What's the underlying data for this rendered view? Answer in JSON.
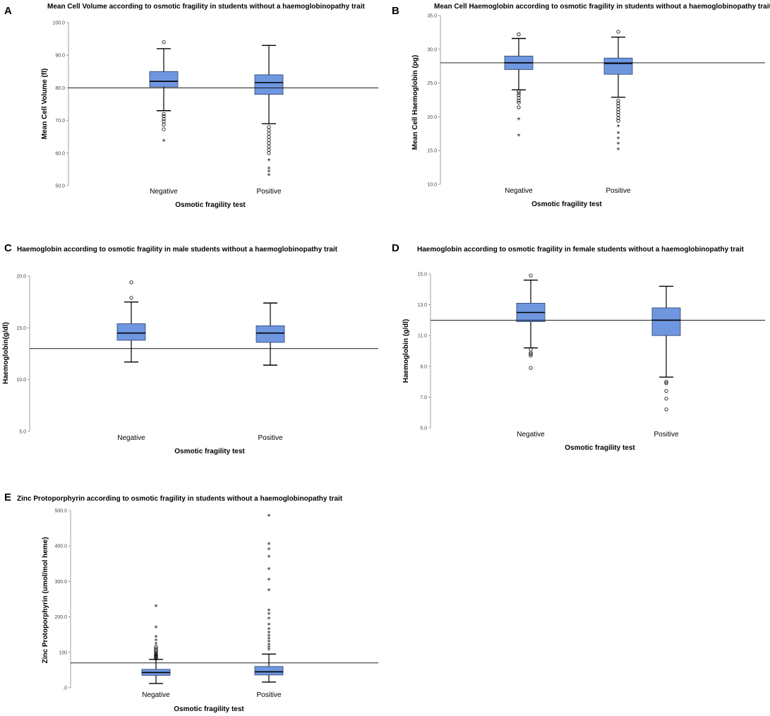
{
  "colors": {
    "box_fill": "#6f97e0",
    "box_stroke": "#2b3f6b",
    "line": "#000000",
    "axis": "#888888"
  },
  "chart_data": [
    {
      "letter": "A",
      "type": "box",
      "title": "Mean Cell Volume according to osmotic fragility in students without a haemoglobinopathy trait",
      "xlabel": "Osmotic fragility test",
      "ylabel": "Mean Cell Volume  (fl)",
      "ylim": [
        50,
        100
      ],
      "ticks": [
        50,
        60,
        70,
        80,
        90,
        100
      ],
      "tick_labels": [
        "50.0",
        "60.0",
        "70.0",
        "80.0",
        "90.0",
        "100.0"
      ],
      "reference_line": 80,
      "categories": [
        "Negative",
        "Positive"
      ],
      "boxes": [
        {
          "q1": 80.3,
          "median": 82,
          "q3": 85,
          "whisker_low": 73,
          "whisker_high": 92,
          "outliers": [
            94,
            72,
            71.3,
            70.5,
            69.7,
            68.7,
            67.3
          ],
          "extremes": [
            63.7
          ]
        },
        {
          "q1": 78,
          "median": 81.6,
          "q3": 84,
          "whisker_low": 69,
          "whisker_high": 93,
          "outliers": [
            68,
            67,
            66,
            65,
            64,
            63,
            62,
            61,
            60
          ],
          "extremes": [
            57.8,
            55.3,
            54.3,
            53.2
          ]
        }
      ]
    },
    {
      "letter": "B",
      "type": "box",
      "title": "Mean Cell Haemoglobin according to osmotic fragility in students without a haemoglobinopathy trait",
      "xlabel": "Osmotic fragility test",
      "ylabel": "Mean Cell Haemoglobin (pg)",
      "ylim": [
        10,
        35
      ],
      "ticks": [
        10,
        15,
        20,
        25,
        30,
        35
      ],
      "tick_labels": [
        "10.0",
        "15.0",
        "20.0",
        "25.0",
        "30.0",
        "35.0"
      ],
      "reference_line": 28,
      "categories": [
        "Negative",
        "Positive"
      ],
      "boxes": [
        {
          "q1": 27,
          "median": 28,
          "q3": 29,
          "whisker_low": 24,
          "whisker_high": 31.6,
          "outliers": [
            32.2,
            23.8,
            23.5,
            23.2,
            22.8,
            22.4,
            22.1,
            21.4
          ],
          "extremes": [
            19.6,
            17.2
          ]
        },
        {
          "q1": 26.3,
          "median": 27.9,
          "q3": 28.7,
          "whisker_low": 22.9,
          "whisker_high": 31.8,
          "outliers": [
            32.6,
            22.4,
            22,
            21.6,
            21.1,
            20.7,
            20.3,
            19.8,
            19.4
          ],
          "extremes": [
            18.6,
            17.6,
            16.8,
            16,
            15.2
          ]
        }
      ]
    },
    {
      "letter": "C",
      "type": "box",
      "title": "Haemoglobin according to osmotic fragility in male students without a haemoglobinopathy trait",
      "xlabel": "Osmotic fragility test",
      "ylabel": "Haemoglobin(g/dl)",
      "ylim": [
        5,
        20
      ],
      "ticks": [
        5,
        10,
        15,
        20
      ],
      "tick_labels": [
        "5.0",
        "10.0",
        "15.0",
        "20.0"
      ],
      "reference_line": 13,
      "categories": [
        "Negative",
        "Positive"
      ],
      "boxes": [
        {
          "q1": 13.8,
          "median": 14.5,
          "q3": 15.4,
          "whisker_low": 11.7,
          "whisker_high": 17.5,
          "outliers": [
            19.4,
            17.9
          ],
          "extremes": []
        },
        {
          "q1": 13.6,
          "median": 14.5,
          "q3": 15.2,
          "whisker_low": 11.4,
          "whisker_high": 17.4,
          "outliers": [],
          "extremes": []
        }
      ]
    },
    {
      "letter": "D",
      "type": "box",
      "title": "Haemoglobin according to osmotic fragility in female students without a haemoglobinopathy trait",
      "xlabel": "Osmotic fragility test",
      "ylabel": "Haemoglobin (g/dl)",
      "ylim": [
        5,
        15
      ],
      "ticks": [
        5,
        7,
        9,
        11,
        13,
        15
      ],
      "tick_labels": [
        "5.0",
        "7.0",
        "9.0",
        "11.0",
        "13.0",
        "15.0"
      ],
      "reference_line": 12,
      "categories": [
        "Negative",
        "Positive"
      ],
      "boxes": [
        {
          "q1": 11.9,
          "median": 12.5,
          "q3": 13.1,
          "whisker_low": 10.2,
          "whisker_high": 14.6,
          "outliers": [
            14.9,
            10.1,
            9.9,
            9.8,
            9.7,
            8.9
          ],
          "extremes": []
        },
        {
          "q1": 11,
          "median": 12,
          "q3": 12.8,
          "whisker_low": 8.3,
          "whisker_high": 14.2,
          "outliers": [
            8,
            7.9,
            7.4,
            6.9,
            6.2
          ],
          "extremes": []
        }
      ]
    },
    {
      "letter": "E",
      "type": "box",
      "title": "Zinc Protoporphyrin according to osmotic fragility in students without a haemoglobinopathy trait",
      "xlabel": "Osmotic fragility test",
      "ylabel": "Zinc Protoporphyrin (umol/mol heme)",
      "ylim": [
        0,
        500
      ],
      "ticks": [
        0,
        100,
        200,
        300,
        400,
        500
      ],
      "tick_labels": [
        ".0",
        "100",
        "200.0",
        "300.0",
        "400.0",
        "500.0"
      ],
      "reference_line": 70,
      "categories": [
        "Negative",
        "Positive"
      ],
      "boxes": [
        {
          "q1": 35,
          "median": 43,
          "q3": 52,
          "whisker_low": 12,
          "whisker_high": 80,
          "outliers": [
            82,
            84,
            86,
            88,
            90,
            92,
            95,
            98,
            102,
            106,
            110,
            115
          ],
          "extremes": [
            124,
            133,
            143,
            170,
            230
          ]
        },
        {
          "q1": 36,
          "median": 45,
          "q3": 60,
          "whisker_low": 16,
          "whisker_high": 95,
          "outliers": [],
          "extremes": [
            108,
            115,
            122,
            130,
            138,
            146,
            155,
            165,
            178,
            195,
            208,
            218,
            275,
            305,
            335,
            370,
            390,
            405,
            485
          ]
        }
      ]
    }
  ]
}
